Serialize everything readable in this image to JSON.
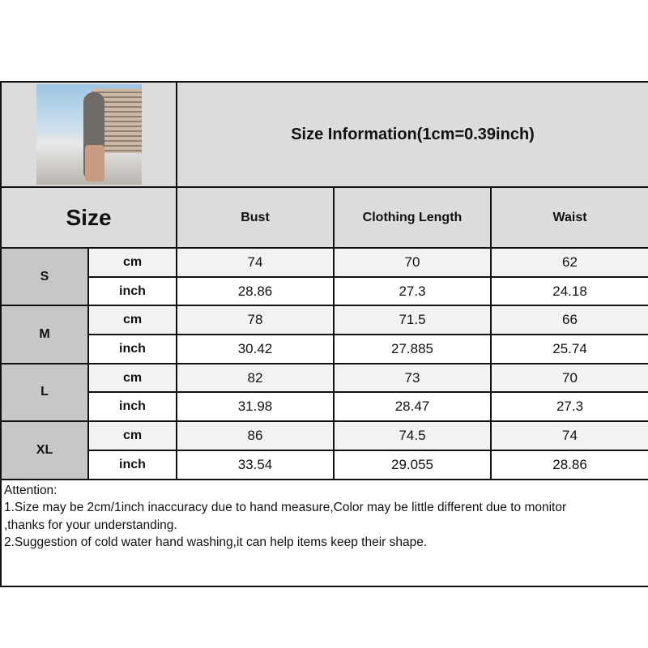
{
  "title": "Size Information(1cm=0.39inch)",
  "header": {
    "size": "Size",
    "columns": [
      "Bust",
      "Clothing Length",
      "Waist"
    ]
  },
  "rows": [
    {
      "size": "S",
      "cm": {
        "unit": "cm",
        "values": [
          "74",
          "70",
          "62"
        ]
      },
      "inch": {
        "unit": "inch",
        "values": [
          "28.86",
          "27.3",
          "24.18"
        ]
      }
    },
    {
      "size": "M",
      "cm": {
        "unit": "cm",
        "values": [
          "78",
          "71.5",
          "66"
        ]
      },
      "inch": {
        "unit": "inch",
        "values": [
          "30.42",
          "27.885",
          "25.74"
        ]
      }
    },
    {
      "size": "L",
      "cm": {
        "unit": "cm",
        "values": [
          "82",
          "73",
          "70"
        ]
      },
      "inch": {
        "unit": "inch",
        "values": [
          "31.98",
          "28.47",
          "27.3"
        ]
      }
    },
    {
      "size": "XL",
      "cm": {
        "unit": "cm",
        "values": [
          "86",
          "74.5",
          "74"
        ]
      },
      "inch": {
        "unit": "inch",
        "values": [
          "33.54",
          "29.055",
          "28.86"
        ]
      }
    }
  ],
  "attention": [
    "Attention:",
    "1.Size may be 2cm/1inch inaccuracy due to hand measure,Color may be little different due to monitor",
    ",thanks for your understanding.",
    "2.Suggestion of cold water hand washing,it can help items keep their shape."
  ],
  "colors": {
    "header_bg": "#dcdcdc",
    "size_cell_bg": "#c9c6c6",
    "cm_row_bg": "#f2f2f2",
    "border": "#111111"
  }
}
